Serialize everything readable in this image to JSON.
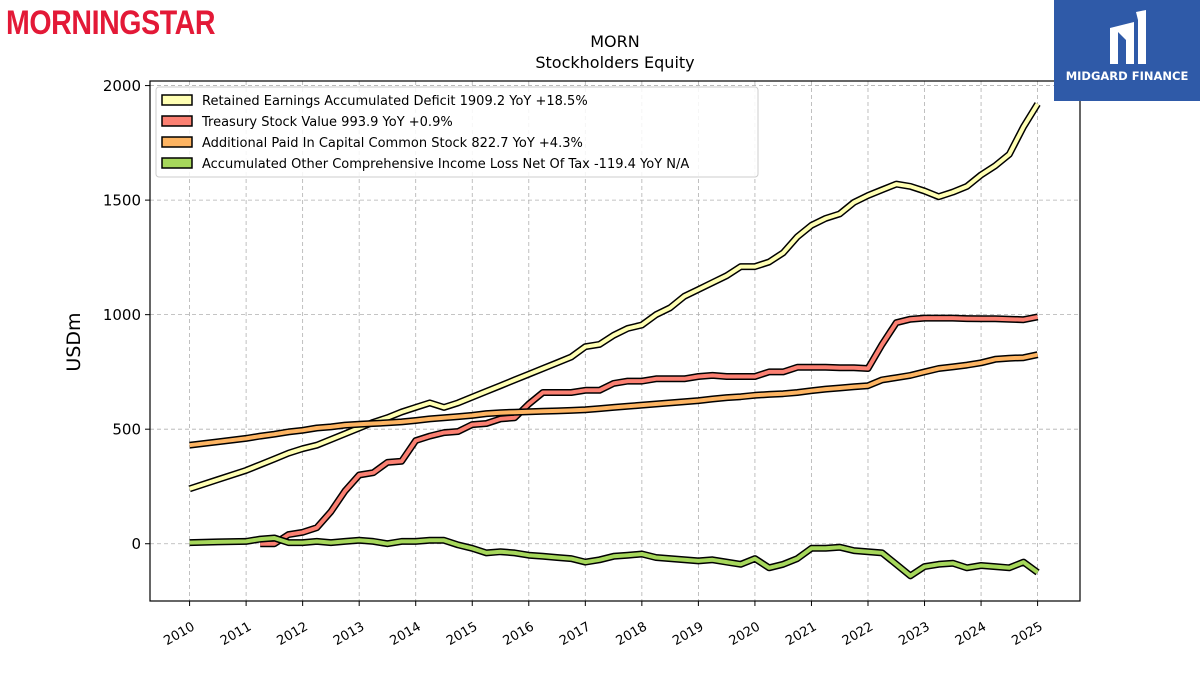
{
  "header": {
    "left_logo_text": "MORNINGSTAR",
    "right_logo_text": "MIDGARD FINANCE"
  },
  "colors": {
    "retained": "#ffffb3",
    "treasury": "#fb8072",
    "apic": "#fdb462",
    "aoci": "#a6d75b",
    "outline": "#000000",
    "brand_red": "#e31937",
    "brand_blue": "#2f5aa8"
  },
  "chart_data": {
    "type": "line",
    "title": "MORN",
    "subtitle": "Stockholders  Equity",
    "xlabel": "",
    "ylabel": "USDm",
    "xlim": [
      2009.3,
      2025.75
    ],
    "ylim": [
      -250,
      2020
    ],
    "xticks": [
      2010,
      2011,
      2012,
      2013,
      2014,
      2015,
      2016,
      2017,
      2018,
      2019,
      2020,
      2021,
      2022,
      2023,
      2024,
      2025
    ],
    "yticks": [
      0,
      500,
      1000,
      1500,
      2000
    ],
    "grid": true,
    "legend_position": "top-left",
    "series": [
      {
        "name": "Retained Earnings Accumulated Deficit  1909.2 YoY +18.5%",
        "color_key": "retained",
        "x": [
          2010,
          2010.5,
          2011,
          2011.25,
          2011.5,
          2011.75,
          2012,
          2012.25,
          2012.5,
          2012.75,
          2013,
          2013.25,
          2013.5,
          2013.75,
          2014,
          2014.25,
          2014.5,
          2014.75,
          2015,
          2015.25,
          2015.5,
          2015.75,
          2016,
          2016.25,
          2016.5,
          2016.75,
          2017,
          2017.25,
          2017.5,
          2017.75,
          2018,
          2018.25,
          2018.5,
          2018.75,
          2019,
          2019.25,
          2019.5,
          2019.75,
          2020,
          2020.25,
          2020.5,
          2020.75,
          2021,
          2021.25,
          2021.5,
          2021.75,
          2022,
          2022.25,
          2022.5,
          2022.75,
          2023,
          2023.25,
          2023.5,
          2023.75,
          2024,
          2024.25,
          2024.5,
          2024.75,
          2025
        ],
        "y": [
          240,
          280,
          320,
          345,
          370,
          395,
          415,
          430,
          455,
          480,
          505,
          530,
          550,
          575,
          595,
          615,
          595,
          615,
          640,
          665,
          690,
          715,
          740,
          765,
          790,
          815,
          860,
          870,
          910,
          940,
          955,
          1000,
          1030,
          1080,
          1110,
          1140,
          1170,
          1210,
          1210,
          1230,
          1270,
          1340,
          1390,
          1420,
          1440,
          1490,
          1520,
          1545,
          1570,
          1560,
          1540,
          1515,
          1535,
          1560,
          1610,
          1650,
          1700,
          1820,
          1920
        ]
      },
      {
        "name": "Treasury Stock Value  993.9 YoY +0.9%",
        "color_key": "treasury",
        "x": [
          2010,
          2010.5,
          2011,
          2011.25,
          2011.5,
          2011.75,
          2012,
          2012.25,
          2012.5,
          2012.75,
          2013,
          2013.25,
          2013.5,
          2013.75,
          2014,
          2014.25,
          2014.5,
          2014.75,
          2015,
          2015.25,
          2015.5,
          2015.75,
          2016,
          2016.25,
          2016.5,
          2016.75,
          2017,
          2017.25,
          2017.5,
          2017.75,
          2018,
          2018.25,
          2018.5,
          2018.75,
          2019,
          2019.25,
          2019.5,
          2019.75,
          2020,
          2020.25,
          2020.5,
          2020.75,
          2021,
          2021.25,
          2021.5,
          2021.75,
          2022,
          2022.25,
          2022.5,
          2022.75,
          2023,
          2023.25,
          2023.5,
          2023.75,
          2024,
          2024.25,
          2024.5,
          2024.75,
          2025
        ],
        "y": [
          null,
          null,
          null,
          0,
          0,
          40,
          50,
          70,
          140,
          230,
          300,
          310,
          355,
          360,
          450,
          470,
          485,
          490,
          520,
          525,
          545,
          550,
          610,
          660,
          660,
          660,
          670,
          670,
          700,
          710,
          710,
          720,
          720,
          720,
          730,
          735,
          730,
          730,
          730,
          750,
          750,
          770,
          770,
          770,
          768,
          768,
          765,
          870,
          965,
          980,
          985,
          985,
          985,
          983,
          982,
          982,
          980,
          978,
          990
        ]
      },
      {
        "name": "Additional Paid In Capital Common Stock  822.7 YoY +4.3%",
        "color_key": "apic",
        "x": [
          2010,
          2010.5,
          2011,
          2011.25,
          2011.5,
          2011.75,
          2012,
          2012.25,
          2012.5,
          2012.75,
          2013,
          2013.25,
          2013.5,
          2013.75,
          2014,
          2014.25,
          2014.5,
          2014.75,
          2015,
          2015.25,
          2015.5,
          2015.75,
          2016,
          2016.25,
          2016.5,
          2016.75,
          2017,
          2017.25,
          2017.5,
          2017.75,
          2018,
          2018.25,
          2018.5,
          2018.75,
          2019,
          2019.25,
          2019.5,
          2019.75,
          2020,
          2020.25,
          2020.5,
          2020.75,
          2021,
          2021.25,
          2021.5,
          2021.75,
          2022,
          2022.25,
          2022.5,
          2022.75,
          2023,
          2023.25,
          2023.5,
          2023.75,
          2024,
          2024.25,
          2024.5,
          2024.75,
          2025
        ],
        "y": [
          430,
          445,
          460,
          470,
          478,
          488,
          495,
          505,
          510,
          518,
          522,
          525,
          528,
          532,
          538,
          545,
          550,
          555,
          560,
          568,
          572,
          574,
          576,
          578,
          580,
          582,
          585,
          590,
          595,
          600,
          605,
          610,
          615,
          620,
          625,
          632,
          638,
          642,
          648,
          652,
          655,
          660,
          668,
          675,
          680,
          685,
          690,
          715,
          725,
          735,
          750,
          765,
          772,
          780,
          790,
          805,
          810,
          812,
          825
        ]
      },
      {
        "name": "Accumulated Other Comprehensive Income Loss Net Of Tax  -119.4 YoY N/A",
        "color_key": "aoci",
        "x": [
          2010,
          2010.5,
          2011,
          2011.25,
          2011.5,
          2011.75,
          2012,
          2012.25,
          2012.5,
          2012.75,
          2013,
          2013.25,
          2013.5,
          2013.75,
          2014,
          2014.25,
          2014.5,
          2014.75,
          2015,
          2015.25,
          2015.5,
          2015.75,
          2016,
          2016.25,
          2016.5,
          2016.75,
          2017,
          2017.25,
          2017.5,
          2017.75,
          2018,
          2018.25,
          2018.5,
          2018.75,
          2019,
          2019.25,
          2019.5,
          2019.75,
          2020,
          2020.25,
          2020.5,
          2020.75,
          2021,
          2021.25,
          2021.5,
          2021.75,
          2022,
          2022.25,
          2022.5,
          2022.75,
          2023,
          2023.25,
          2023.5,
          2023.75,
          2024,
          2024.25,
          2024.5,
          2024.75,
          2025
        ],
        "y": [
          5,
          8,
          10,
          20,
          25,
          5,
          5,
          10,
          5,
          10,
          15,
          10,
          0,
          10,
          10,
          15,
          15,
          -5,
          -20,
          -40,
          -35,
          -40,
          -50,
          -55,
          -60,
          -65,
          -80,
          -70,
          -55,
          -50,
          -45,
          -60,
          -65,
          -70,
          -75,
          -70,
          -80,
          -90,
          -65,
          -105,
          -90,
          -65,
          -20,
          -20,
          -15,
          -30,
          -35,
          -40,
          -90,
          -140,
          -100,
          -90,
          -85,
          -105,
          -95,
          -100,
          -105,
          -80,
          -125
        ]
      }
    ]
  }
}
